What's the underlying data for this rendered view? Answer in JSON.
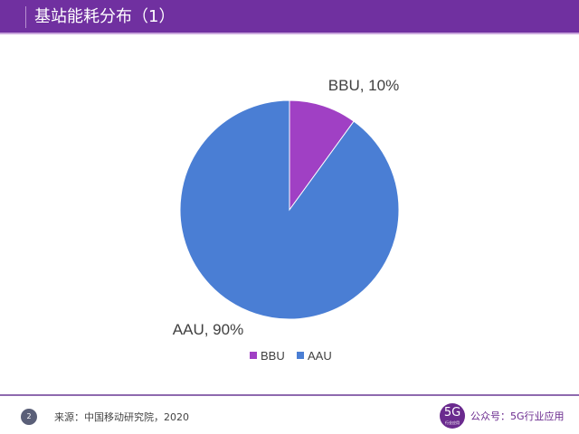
{
  "header": {
    "title": "基站能耗分布（1）"
  },
  "chart_data": {
    "type": "pie",
    "categories": [
      "BBU",
      "AAU"
    ],
    "values": [
      10,
      90
    ],
    "data_labels": [
      "BBU, 10%",
      "AAU, 90%"
    ],
    "colors": [
      "#A040C4",
      "#4A7ED4"
    ],
    "legend": "bottom"
  },
  "footer": {
    "page_number": "2",
    "source": "来源：中国移动研究院，2020",
    "logo_text": "5G",
    "logo_subtext": "行业应用",
    "account": "公众号：5G行业应用"
  }
}
